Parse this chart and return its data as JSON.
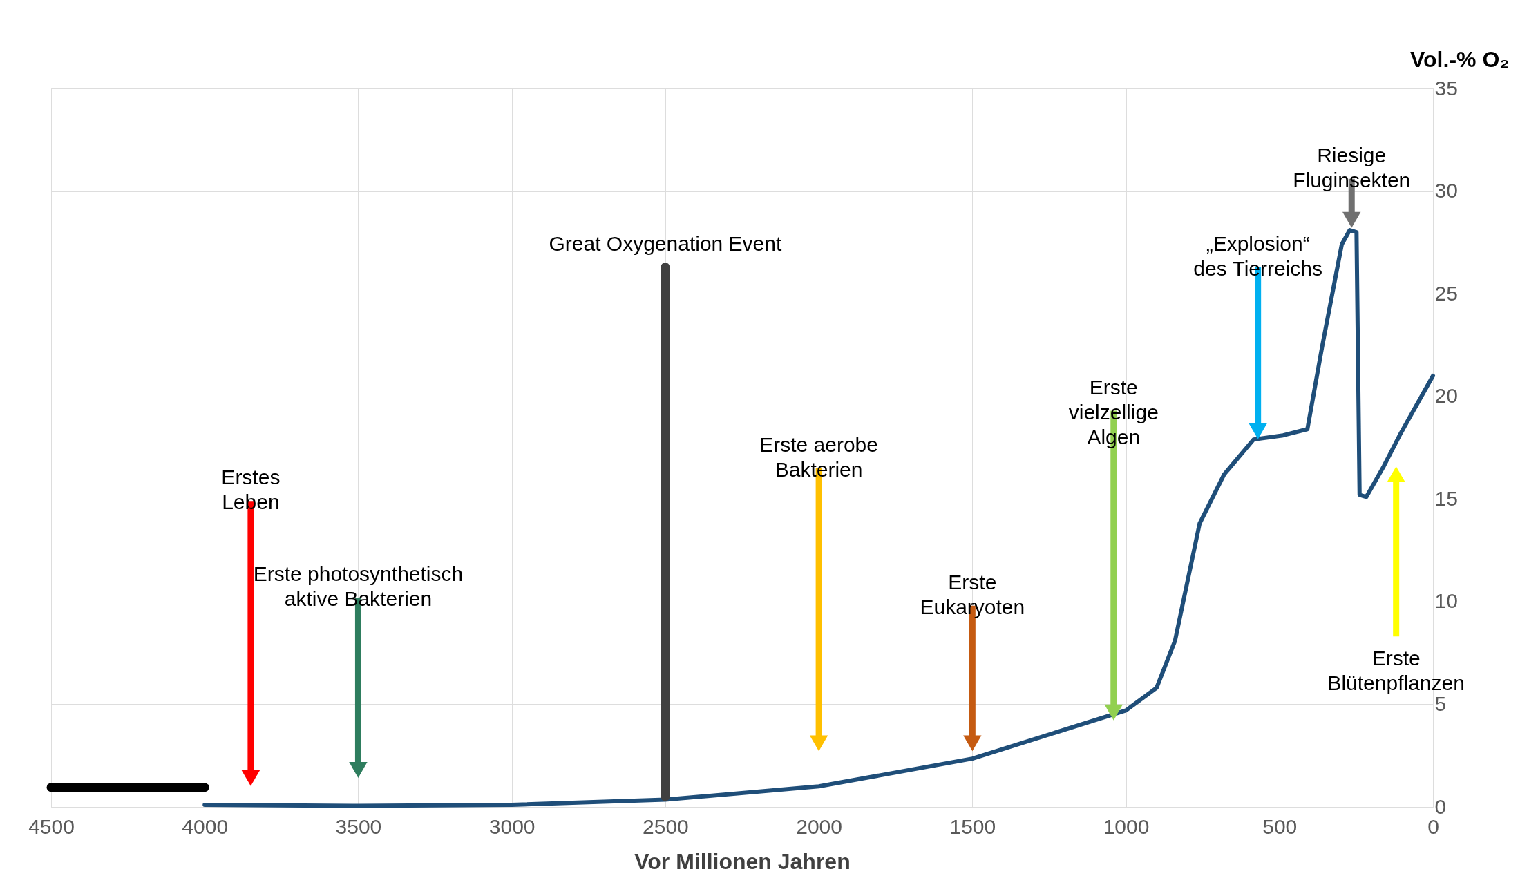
{
  "chart_data": {
    "type": "line",
    "xlabel": "Vor Millionen Jahren",
    "ylabel": "Vol.-% O₂",
    "xlim": [
      4500,
      0
    ],
    "xticks": [
      4500,
      4000,
      3500,
      3000,
      2500,
      2000,
      1500,
      1000,
      500,
      0
    ],
    "ylim": [
      0,
      35
    ],
    "yticks": [
      0,
      5,
      10,
      15,
      20,
      25,
      30,
      35
    ],
    "grid": true,
    "legend": false,
    "series": [
      {
        "color": "#1f4e79",
        "x": [
          4000,
          3500,
          3000,
          2500,
          2000,
          1500,
          1000,
          900,
          840,
          760,
          680,
          584,
          488,
          409,
          360,
          297,
          271,
          249,
          239,
          217,
          160,
          105,
          0
        ],
        "values": [
          0.1,
          0.05,
          0.1,
          0.35,
          1.0,
          2.35,
          4.7,
          5.8,
          8.1,
          13.8,
          16.2,
          17.9,
          18.1,
          18.4,
          22.5,
          27.4,
          28.1,
          28.0,
          15.2,
          15.1,
          16.6,
          18.2,
          21.0
        ]
      },
      {
        "color": "#000000",
        "x": [
          4500,
          4000
        ],
        "values": [
          0.95,
          0.95
        ]
      },
      {
        "name": "Great Oxygenation Event",
        "color": "#404040",
        "x": [
          2500,
          2500
        ],
        "values": [
          26.3,
          0.5
        ]
      },
      {
        "name": "Erstes\nLeben",
        "color": "#ff0000",
        "marker": "triangle",
        "x": [
          3850,
          3850
        ],
        "values": [
          14.9,
          1.4
        ]
      },
      {
        "name": "Erste photosynthetisch\naktive Bakterien",
        "color": "#2e7d5e",
        "marker": "triangle",
        "x": [
          3500,
          3500
        ],
        "values": [
          10.2,
          1.8
        ]
      },
      {
        "name": "Erste aerobe\nBakterien",
        "color": "#ffc000",
        "marker": "triangle",
        "x": [
          2000,
          2000
        ],
        "values": [
          16.5,
          3.1
        ]
      },
      {
        "name": "Erste\nEukaryoten",
        "color": "#c55a11",
        "marker": "triangle",
        "x": [
          1500,
          1500
        ],
        "values": [
          9.8,
          3.1
        ]
      },
      {
        "name": "Erste\nvielzellige\nAlgen",
        "color": "#92d050",
        "marker": "triangle",
        "x": [
          1040,
          1040
        ],
        "values": [
          19.3,
          4.6
        ]
      },
      {
        "name": "„Explosion“\ndes Tierreichs",
        "color": "#00b0f0",
        "marker": "triangle",
        "x": [
          570,
          570
        ],
        "values": [
          26.3,
          18.3
        ]
      },
      {
        "name": "Riesige\nFluginsekten",
        "color": "#707070",
        "marker": "triangle",
        "x": [
          265,
          265
        ],
        "values": [
          30.6,
          28.6
        ]
      },
      {
        "name": "Erste\nBlütenpflanzen",
        "color": "#ffff00",
        "marker": "triangle",
        "x": [
          120,
          120
        ],
        "values": [
          8.3,
          16.2
        ]
      }
    ]
  }
}
